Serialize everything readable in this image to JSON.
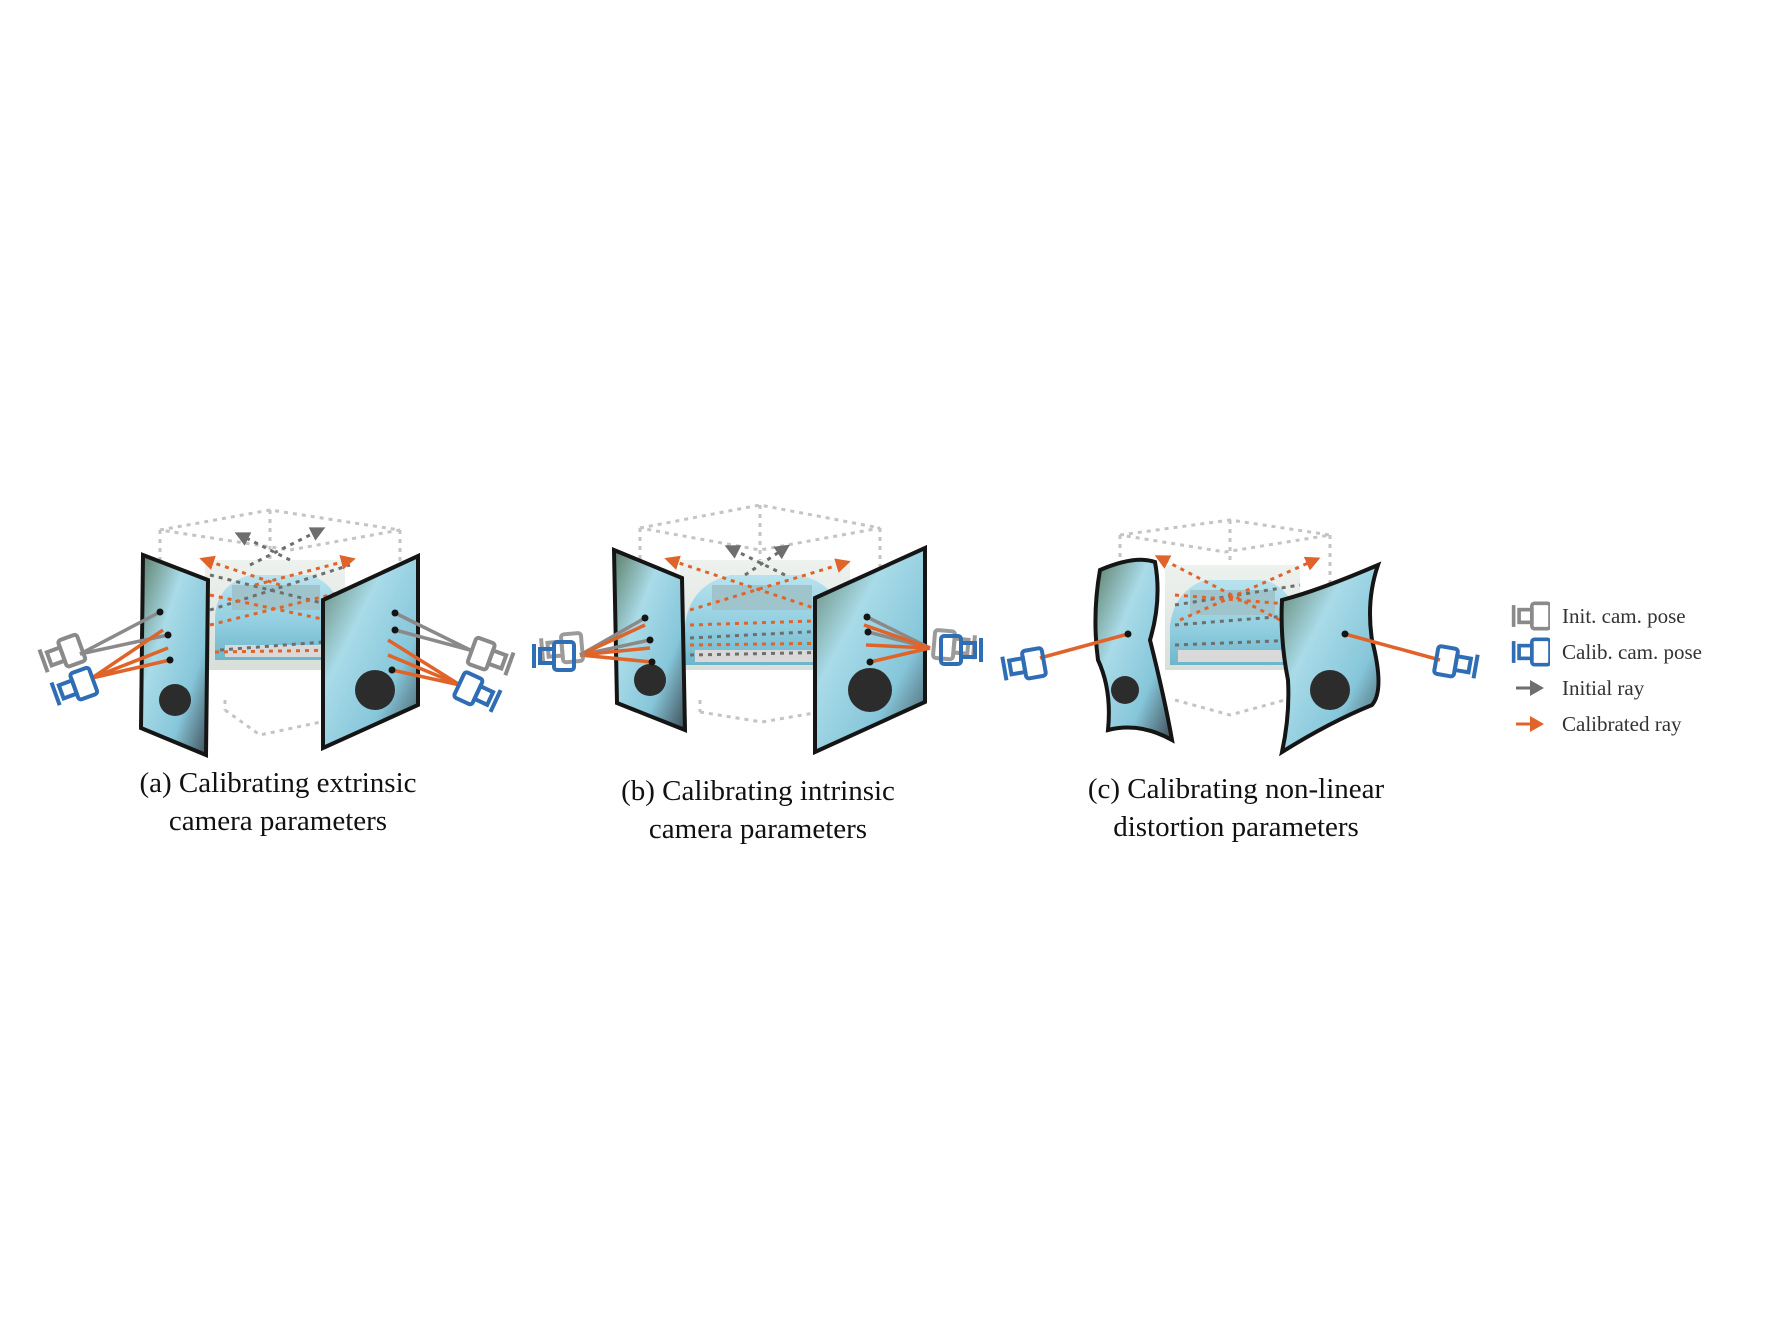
{
  "colors": {
    "init_gray": "#7a7a7a",
    "calib_blue": "#2f6db5",
    "calib_orange": "#e0642a",
    "box_dotted": "#bdbdbd",
    "car_body": "#9fd3e0",
    "plane_border": "#151515"
  },
  "panels": [
    {
      "id": "a",
      "caption_line1": "(a) Calibrating extrinsic",
      "caption_line2": "camera parameters"
    },
    {
      "id": "b",
      "caption_line1": "(b) Calibrating intrinsic",
      "caption_line2": "camera parameters"
    },
    {
      "id": "c",
      "caption_line1": "(c) Calibrating non-linear",
      "caption_line2": "distortion parameters"
    }
  ],
  "legend": {
    "items": [
      {
        "label": "Init. cam. pose",
        "icon": "camera-icon-gray"
      },
      {
        "label": "Calib. cam. pose",
        "icon": "camera-icon-blue"
      },
      {
        "label": "Initial ray",
        "icon": "arrow-icon-gray"
      },
      {
        "label": "Calibrated ray",
        "icon": "arrow-icon-orange"
      }
    ]
  }
}
